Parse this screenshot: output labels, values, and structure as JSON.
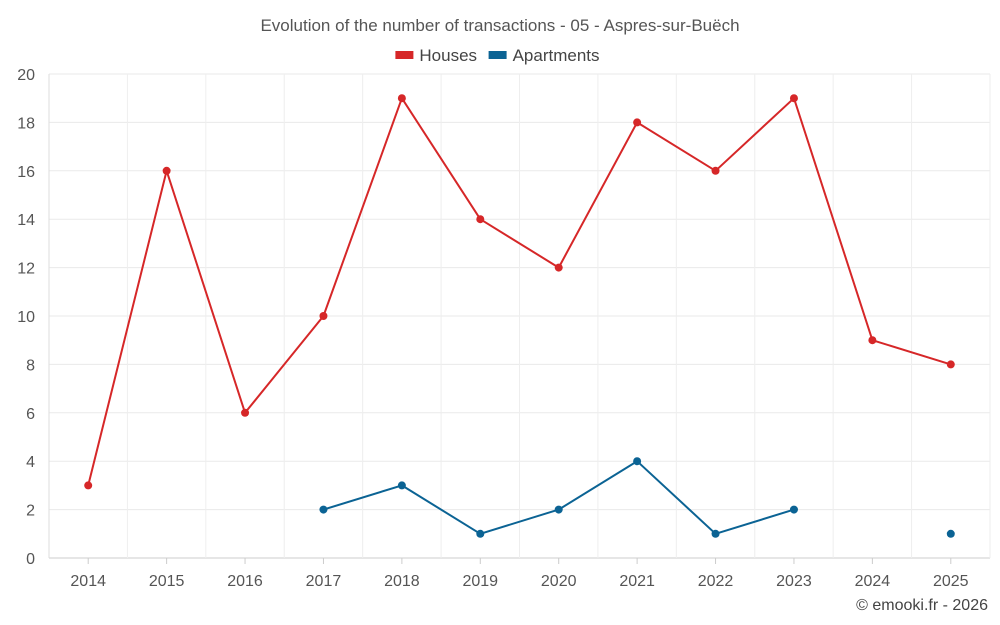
{
  "chart_data": {
    "type": "line",
    "title": "Evolution of the number of transactions - 05 - Aspres-sur-Buëch",
    "categories": [
      "2014",
      "2015",
      "2016",
      "2017",
      "2018",
      "2019",
      "2020",
      "2021",
      "2022",
      "2023",
      "2024",
      "2025"
    ],
    "ylim": [
      0,
      20
    ],
    "yticks": [
      0,
      2,
      4,
      6,
      8,
      10,
      12,
      14,
      16,
      18,
      20
    ],
    "grid": true,
    "legend_position": "top-center",
    "series": [
      {
        "name": "Houses",
        "color": "#d62728",
        "values": [
          3,
          16,
          6,
          10,
          19,
          14,
          12,
          18,
          16,
          19,
          9,
          8
        ]
      },
      {
        "name": "Apartments",
        "color": "#0b6394",
        "values": [
          null,
          null,
          null,
          2,
          3,
          1,
          2,
          4,
          1,
          2,
          null,
          1
        ]
      }
    ]
  },
  "credit": "© emooki.fr - 2026"
}
